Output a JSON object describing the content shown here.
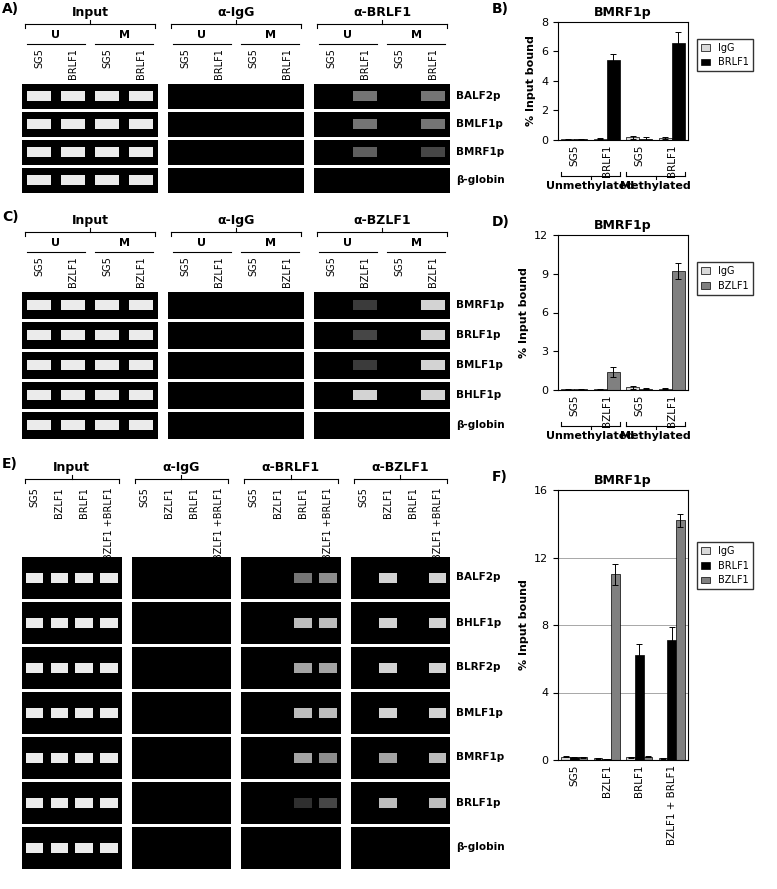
{
  "gels": [
    {
      "panel_label": "A)",
      "groups": [
        {
          "label": "Input",
          "subgroups": [
            {
              "label": "U",
              "lanes": [
                "SG5",
                "BRLF1"
              ]
            },
            {
              "label": "M",
              "lanes": [
                "SG5",
                "BRLF1"
              ]
            }
          ]
        },
        {
          "label": "α-IgG",
          "subgroups": [
            {
              "label": "U",
              "lanes": [
                "SG5",
                "BRLF1"
              ]
            },
            {
              "label": "M",
              "lanes": [
                "SG5",
                "BRLF1"
              ]
            }
          ]
        },
        {
          "label": "α-BRLF1",
          "subgroups": [
            {
              "label": "U",
              "lanes": [
                "SG5",
                "BRLF1"
              ]
            },
            {
              "label": "M",
              "lanes": [
                "SG5",
                "BRLF1"
              ]
            }
          ]
        }
      ],
      "rows": [
        {
          "label": "BALF2p",
          "bands": [
            1,
            1,
            1,
            1,
            0,
            0,
            0,
            0,
            0,
            0.5,
            0,
            0.5
          ]
        },
        {
          "label": "BMLF1p",
          "bands": [
            1,
            1,
            1,
            1,
            0,
            0,
            0,
            0,
            0,
            0.5,
            0,
            0.5
          ]
        },
        {
          "label": "BMRF1p",
          "bands": [
            1,
            1,
            1,
            1,
            0,
            0,
            0,
            0,
            0,
            0.4,
            0,
            0.3
          ]
        },
        {
          "label": "β-globin",
          "bands": [
            1,
            1,
            1,
            1,
            0,
            0,
            0,
            0,
            0,
            0,
            0,
            0
          ]
        }
      ]
    },
    {
      "panel_label": "C)",
      "groups": [
        {
          "label": "Input",
          "subgroups": [
            {
              "label": "U",
              "lanes": [
                "SG5",
                "BZLF1"
              ]
            },
            {
              "label": "M",
              "lanes": [
                "SG5",
                "BZLF1"
              ]
            }
          ]
        },
        {
          "label": "α-IgG",
          "subgroups": [
            {
              "label": "U",
              "lanes": [
                "SG5",
                "BZLF1"
              ]
            },
            {
              "label": "M",
              "lanes": [
                "SG5",
                "BZLF1"
              ]
            }
          ]
        },
        {
          "label": "α-BZLF1",
          "subgroups": [
            {
              "label": "U",
              "lanes": [
                "SG5",
                "BZLF1"
              ]
            },
            {
              "label": "M",
              "lanes": [
                "SG5",
                "BZLF1"
              ]
            }
          ]
        }
      ],
      "rows": [
        {
          "label": "BMRF1p",
          "bands": [
            1,
            1,
            1,
            1,
            0,
            0,
            0,
            0,
            0,
            0.25,
            0,
            0.9
          ]
        },
        {
          "label": "BRLF1p",
          "bands": [
            1,
            1,
            1,
            1,
            0,
            0,
            0,
            0,
            0,
            0.3,
            0,
            0.9
          ]
        },
        {
          "label": "BMLF1p",
          "bands": [
            1,
            1,
            1,
            1,
            0,
            0,
            0,
            0,
            0,
            0.25,
            0,
            0.9
          ]
        },
        {
          "label": "BHLF1p",
          "bands": [
            1,
            1,
            1,
            1,
            0,
            0,
            0,
            0,
            0,
            0.9,
            0,
            0.9
          ]
        },
        {
          "label": "β-globin",
          "bands": [
            1,
            1,
            1,
            1,
            0,
            0,
            0,
            0,
            0,
            0,
            0,
            0
          ]
        }
      ]
    },
    {
      "panel_label": "E)",
      "groups": [
        {
          "label": "Input",
          "lanes": [
            "SG5",
            "BZLF1",
            "BRLF1",
            "BZLF1 +BRLF1"
          ]
        },
        {
          "label": "α-IgG",
          "lanes": [
            "SG5",
            "BZLF1",
            "BRLF1",
            "BZLF1 +BRLF1"
          ]
        },
        {
          "label": "α-BRLF1",
          "lanes": [
            "SG5",
            "BZLF1",
            "BRLF1",
            "BZLF1 +BRLF1"
          ]
        },
        {
          "label": "α-BZLF1",
          "lanes": [
            "SG5",
            "BZLF1",
            "BRLF1",
            "BZLF1 +BRLF1"
          ]
        }
      ],
      "rows": [
        {
          "label": "BALF2p",
          "bands": [
            1,
            1,
            1,
            1,
            0,
            0,
            0,
            0,
            0,
            0,
            0.5,
            0.6,
            0,
            0.9,
            0,
            0.9
          ]
        },
        {
          "label": "BHLF1p",
          "bands": [
            1,
            1,
            1,
            1,
            0,
            0,
            0,
            0,
            0,
            0,
            0.8,
            0.8,
            0,
            0.9,
            0,
            0.9
          ]
        },
        {
          "label": "BLRF2p",
          "bands": [
            1,
            1,
            1,
            1,
            0,
            0,
            0,
            0,
            0,
            0,
            0.7,
            0.7,
            0,
            0.9,
            0,
            0.9
          ]
        },
        {
          "label": "BMLF1p",
          "bands": [
            1,
            1,
            1,
            1,
            0,
            0,
            0,
            0,
            0,
            0,
            0.8,
            0.8,
            0,
            0.9,
            0,
            0.9
          ]
        },
        {
          "label": "BMRF1p",
          "bands": [
            1,
            1,
            1,
            1,
            0,
            0,
            0,
            0,
            0,
            0,
            0.7,
            0.6,
            0,
            0.7,
            0,
            0.8
          ]
        },
        {
          "label": "BRLF1p",
          "bands": [
            1,
            1,
            1,
            1,
            0,
            0,
            0,
            0,
            0,
            0,
            0.2,
            0.3,
            0,
            0.8,
            0,
            0.8
          ]
        },
        {
          "label": "β-globin",
          "bands": [
            1,
            1,
            1,
            1,
            0,
            0,
            0,
            0,
            0,
            0,
            0,
            0,
            0,
            0,
            0,
            0
          ]
        }
      ]
    }
  ],
  "chart_data": [
    {
      "type": "bar",
      "panel_label": "B)",
      "title": "BMRF1p",
      "y_label": "% Input bound",
      "categories": [
        "SG5",
        "BRLF1",
        "SG5",
        "BRLF1"
      ],
      "groups": [
        {
          "label": "Unmethylated",
          "size": 2
        },
        {
          "label": "Methylated",
          "size": 2
        }
      ],
      "series": [
        {
          "name": "IgG",
          "color": "#d9d9d9",
          "values": [
            0.05,
            0.1,
            0.2,
            0.15
          ],
          "errors": [
            0.02,
            0.03,
            0.1,
            0.08
          ]
        },
        {
          "name": "BRLF1",
          "color": "#000000",
          "values": [
            0.05,
            5.4,
            0.1,
            6.6
          ],
          "errors": [
            0.02,
            0.45,
            0.1,
            0.7
          ]
        }
      ],
      "ylim": [
        0,
        8
      ],
      "yticks": [
        0,
        2,
        4,
        6,
        8
      ],
      "grid": false,
      "legend": "right"
    },
    {
      "type": "bar",
      "panel_label": "D)",
      "title": "BMRF1p",
      "y_label": "% Input bound",
      "categories": [
        "SG5",
        "BZLF1",
        "SG5",
        "BZLF1"
      ],
      "groups": [
        {
          "label": "Unmethylated",
          "size": 2
        },
        {
          "label": "Methylated",
          "size": 2
        }
      ],
      "series": [
        {
          "name": "IgG",
          "color": "#d9d9d9",
          "values": [
            0.05,
            0.05,
            0.2,
            0.1
          ],
          "errors": [
            0.02,
            0.02,
            0.1,
            0.05
          ]
        },
        {
          "name": "BZLF1",
          "color": "#808080",
          "values": [
            0.05,
            1.4,
            0.1,
            9.2
          ],
          "errors": [
            0.02,
            0.4,
            0.05,
            0.6
          ]
        }
      ],
      "ylim": [
        0,
        12
      ],
      "yticks": [
        0,
        3,
        6,
        9,
        12
      ],
      "grid": false,
      "legend": "right"
    },
    {
      "type": "bar",
      "panel_label": "F)",
      "title": "BMRF1p",
      "y_label": "% Input bound",
      "categories": [
        "SG5",
        "BZLF1",
        "BRLF1",
        "BZLF1 + BRLF1"
      ],
      "series": [
        {
          "name": "IgG",
          "color": "#d9d9d9",
          "values": [
            0.2,
            0.1,
            0.15,
            0.1
          ],
          "errors": [
            0.05,
            0.03,
            0.05,
            0.03
          ]
        },
        {
          "name": "BRLF1",
          "color": "#000000",
          "values": [
            0.15,
            0.05,
            6.2,
            7.1
          ],
          "errors": [
            0.05,
            0.02,
            0.7,
            0.8
          ]
        },
        {
          "name": "BZLF1",
          "color": "#808080",
          "values": [
            0.15,
            11,
            0.2,
            14.2
          ],
          "errors": [
            0.05,
            0.6,
            0.05,
            0.4
          ]
        }
      ],
      "ylim": [
        0,
        16
      ],
      "yticks": [
        0,
        4,
        8,
        12,
        16
      ],
      "grid": true,
      "legend": "right"
    }
  ]
}
